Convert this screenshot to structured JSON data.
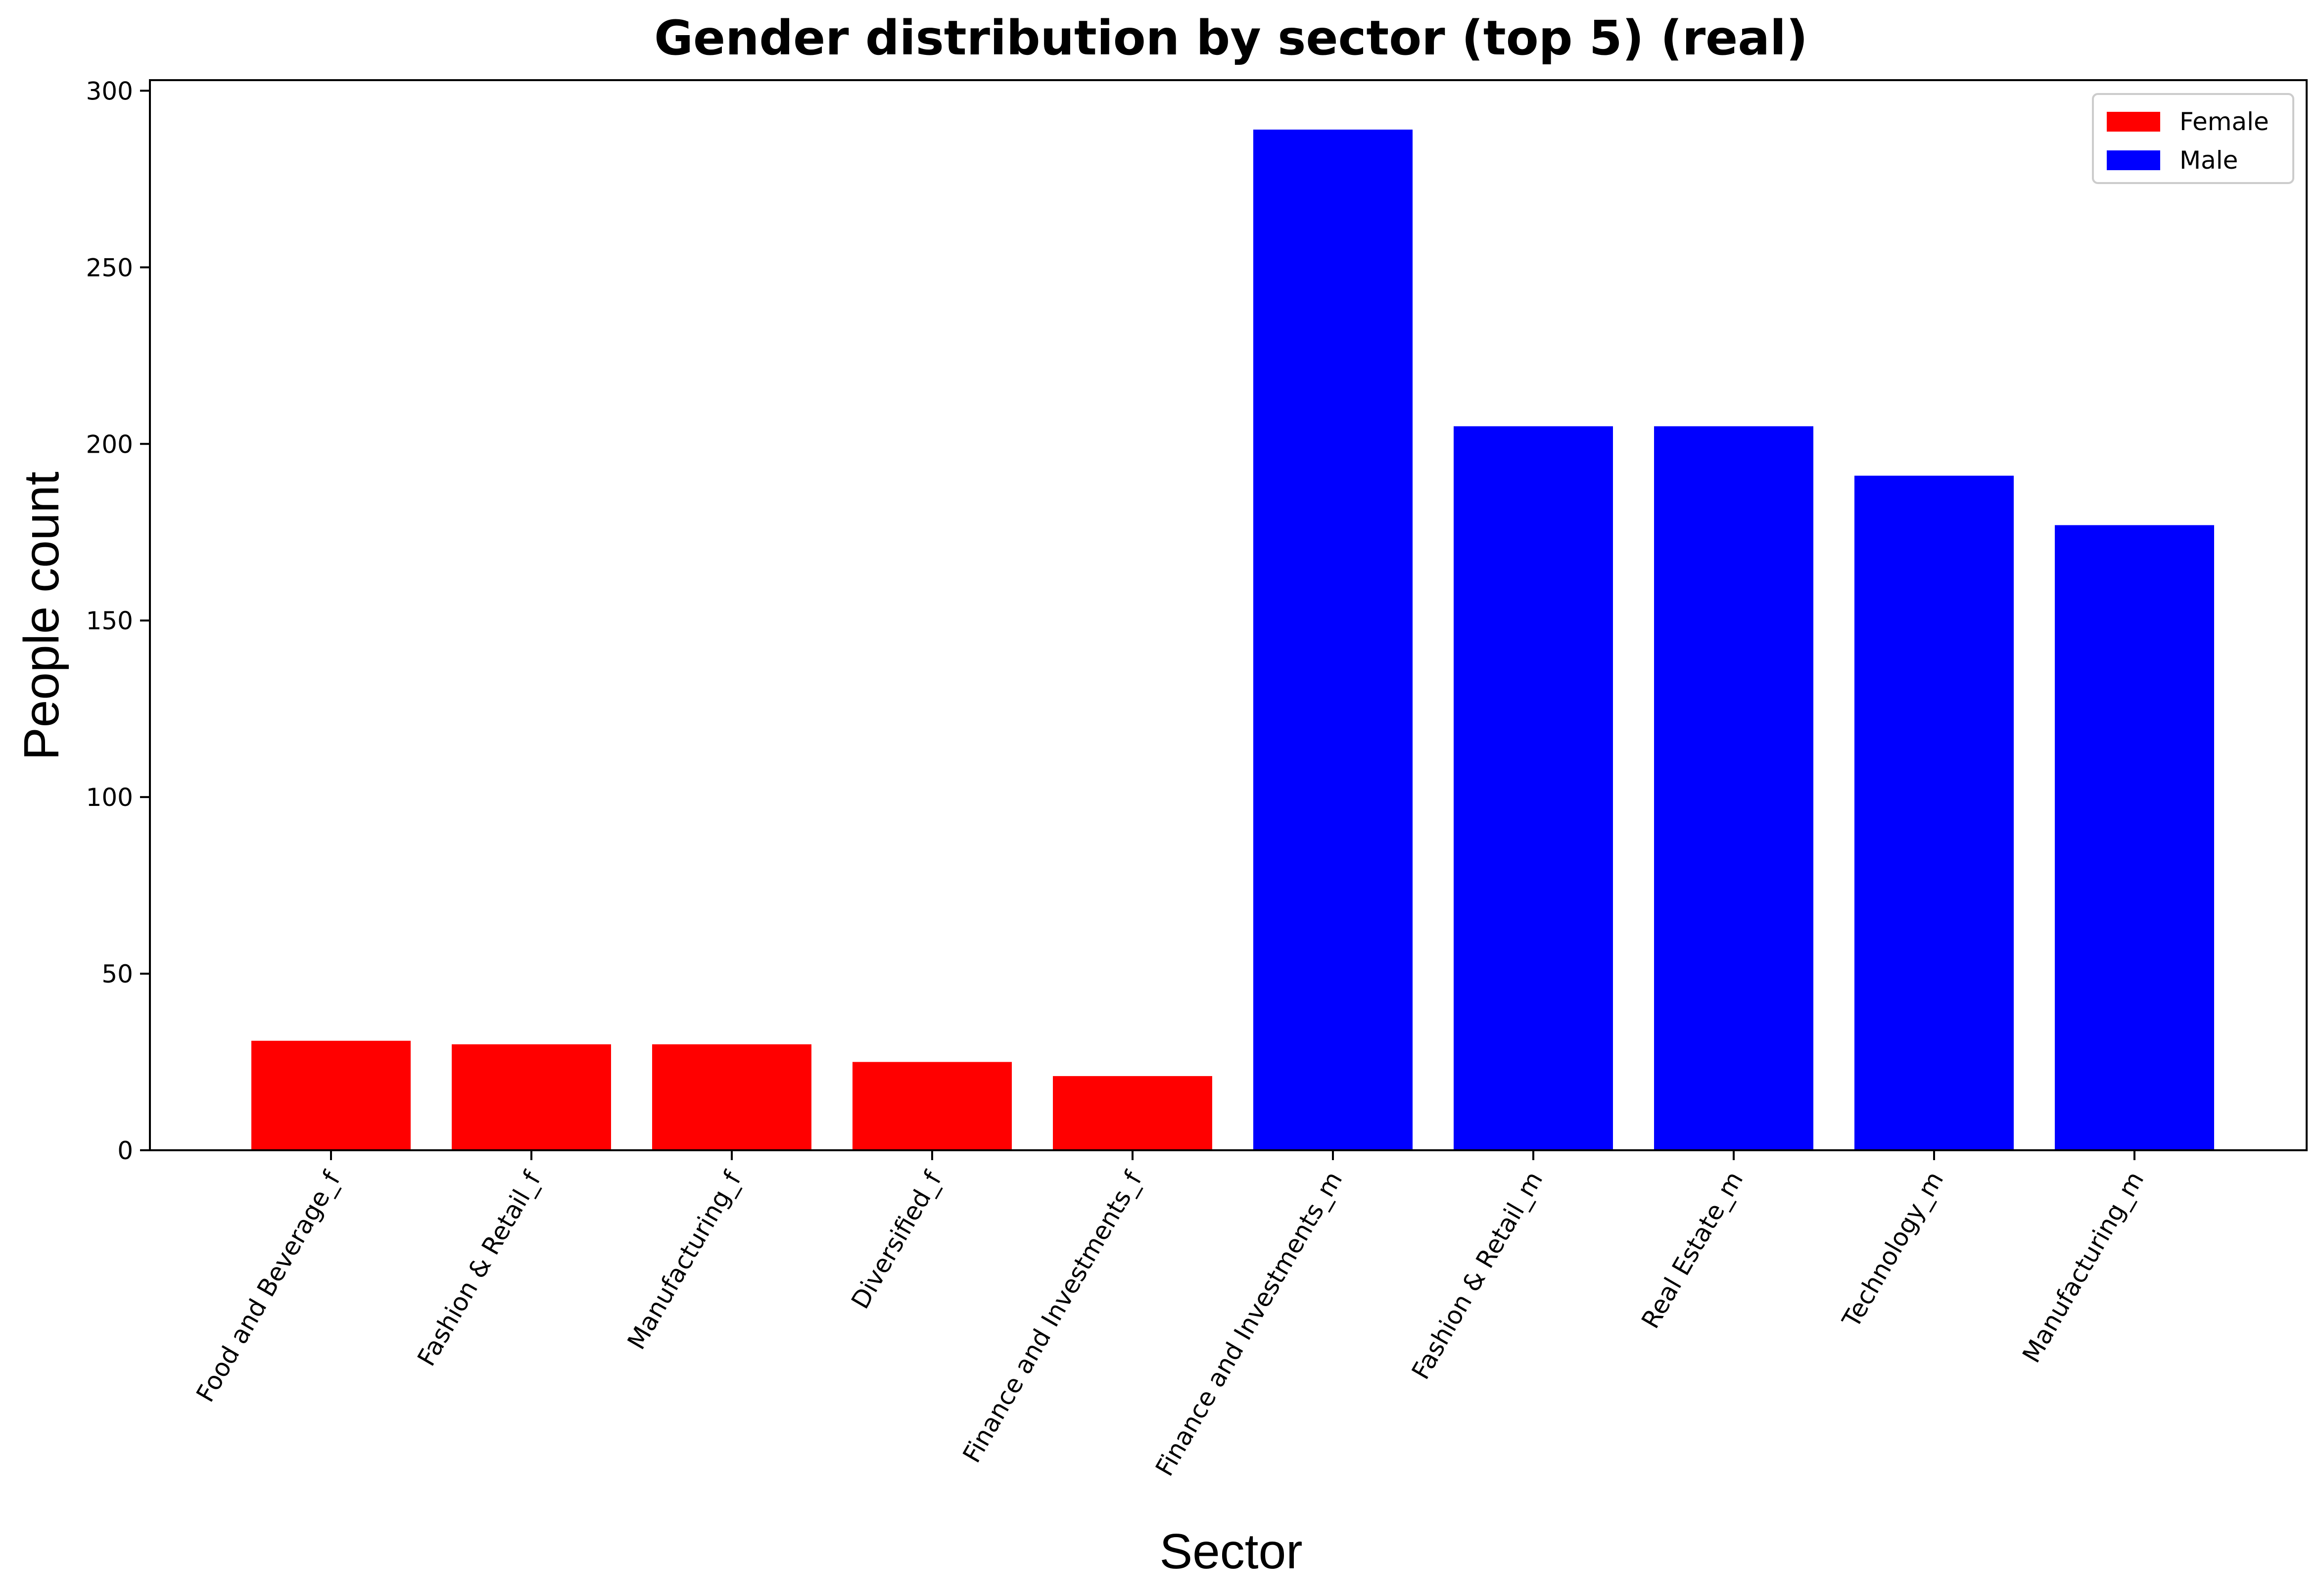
{
  "chart_data": {
    "type": "bar",
    "title": "Gender distribution by sector (top 5) (real)",
    "xlabel": "Sector",
    "ylabel": "People count",
    "ylim": [
      0,
      303
    ],
    "yticks": [
      0,
      50,
      100,
      150,
      200,
      250,
      300
    ],
    "grid": false,
    "legend_position": "top-right",
    "categories": [
      "Food and Beverage_f",
      "Fashion & Retail_f",
      "Manufacturing_f",
      "Diversified_f",
      "Finance and Investments_f",
      "Finance and Investments_m",
      "Fashion & Retail_m",
      "Real Estate_m",
      "Technology_m",
      "Manufacturing_m"
    ],
    "series": [
      {
        "name": "Female",
        "color": "#ff0000",
        "values": [
          31,
          30,
          30,
          25,
          21,
          null,
          null,
          null,
          null,
          null
        ]
      },
      {
        "name": "Male",
        "color": "#0000ff",
        "values": [
          null,
          null,
          null,
          null,
          null,
          289,
          205,
          205,
          191,
          177
        ]
      }
    ]
  }
}
